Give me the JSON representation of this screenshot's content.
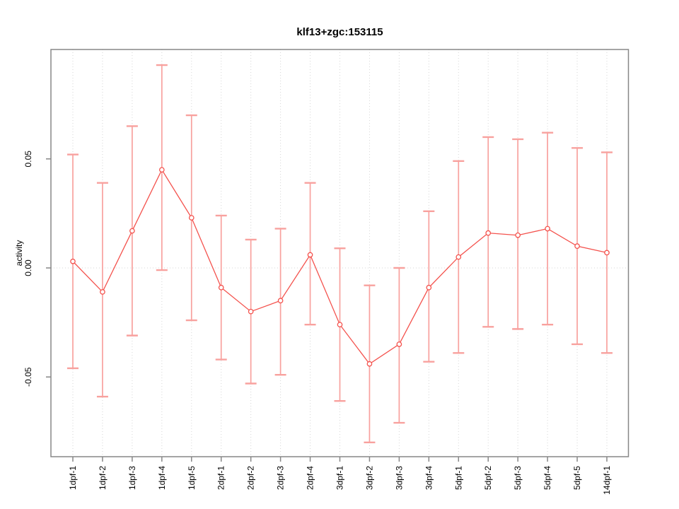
{
  "chart_data": {
    "type": "line",
    "title": "klf13+zgc:153115",
    "xlabel": "",
    "ylabel": "activity",
    "categories": [
      "1dpf-1",
      "1dpf-2",
      "1dpf-3",
      "1dpf-4",
      "1dpf-5",
      "2dpf-1",
      "2dpf-2",
      "2dpf-3",
      "2dpf-4",
      "3dpf-1",
      "3dpf-2",
      "3dpf-3",
      "3dpf-4",
      "5dpf-1",
      "5dpf-2",
      "5dpf-3",
      "5dpf-4",
      "5dpf-5",
      "14dpf-1"
    ],
    "series": [
      {
        "name": "activity",
        "values": [
          0.003,
          -0.011,
          0.017,
          0.045,
          0.023,
          -0.009,
          -0.02,
          -0.015,
          0.006,
          -0.026,
          -0.044,
          -0.035,
          -0.009,
          0.005,
          0.016,
          0.015,
          0.018,
          0.01,
          0.007
        ]
      }
    ],
    "error_high": [
      0.052,
      0.039,
      0.065,
      0.093,
      0.07,
      0.024,
      0.013,
      0.018,
      0.039,
      0.009,
      -0.008,
      0.0,
      0.026,
      0.049,
      0.06,
      0.059,
      0.062,
      0.055,
      0.053
    ],
    "error_low": [
      -0.046,
      -0.059,
      -0.031,
      -0.001,
      -0.024,
      -0.042,
      -0.053,
      -0.049,
      -0.026,
      -0.061,
      -0.08,
      -0.071,
      -0.043,
      -0.039,
      -0.027,
      -0.028,
      -0.026,
      -0.035,
      -0.039
    ],
    "ytick_values": [
      0.05,
      0.0,
      -0.05
    ],
    "ytick_labels": [
      "0.05",
      "0.00",
      "-0.05"
    ],
    "ylim": [
      -0.087,
      0.1
    ],
    "grid": "dotted vertical line at every category; dotted horizontal line at y=0",
    "legend": "none",
    "point_style": "open-circle",
    "colors": {
      "line": "#f4524d",
      "error_bar": "#f8a19e",
      "grid": "#d6d6d6",
      "box": "#878787",
      "text": "#000000"
    }
  }
}
